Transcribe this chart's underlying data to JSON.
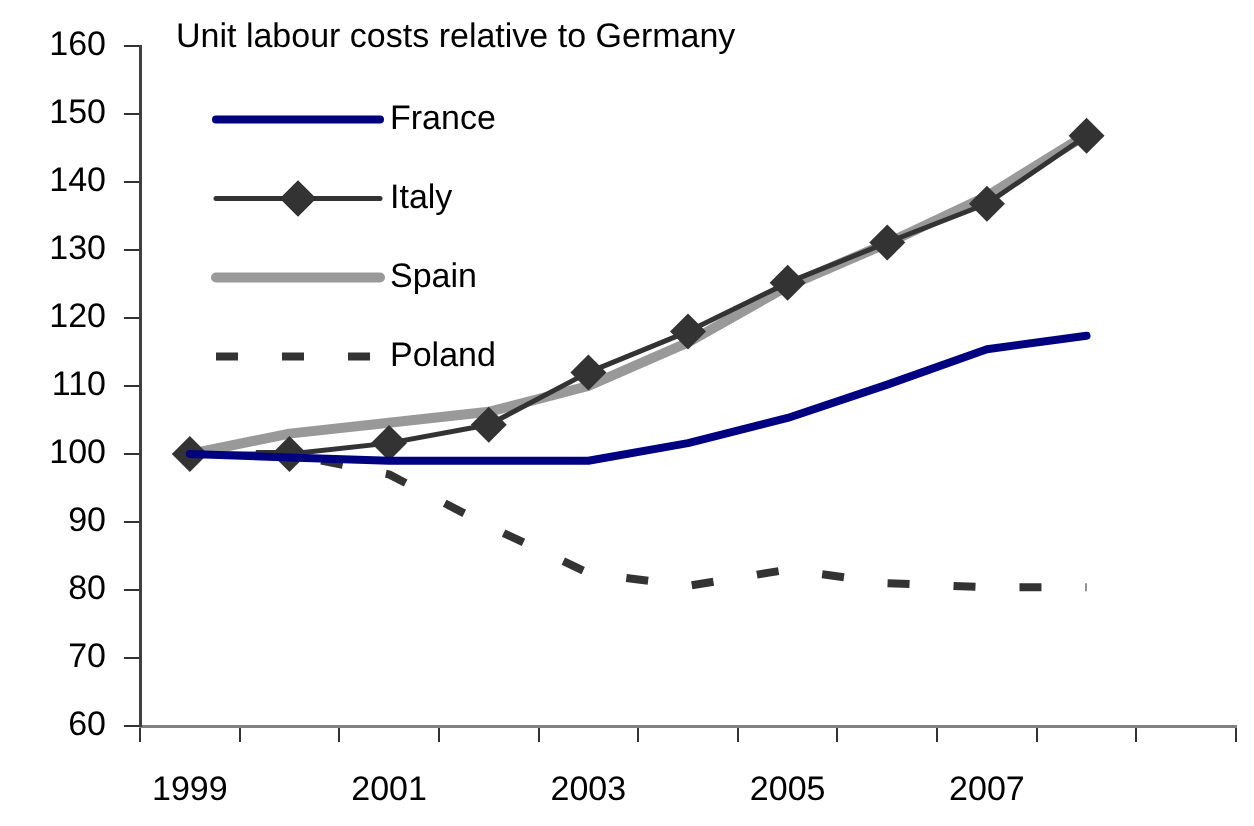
{
  "chart_data": {
    "type": "line",
    "title": "Unit labour costs relative to Germany",
    "categories": [
      "1999",
      null,
      "2001",
      null,
      "2003",
      null,
      "2005",
      null,
      "2007",
      null,
      null
    ],
    "series": [
      {
        "name": "France",
        "color": "#000080",
        "values": [
          100,
          99.5,
          99,
          99,
          99,
          101.6,
          105.3,
          110.2,
          115.4,
          117.4,
          null
        ]
      },
      {
        "name": "Italy",
        "color": "#333333",
        "marker": "diamond",
        "values": [
          100,
          100,
          101.6,
          104.3,
          112,
          118,
          125.2,
          131.1,
          136.8,
          146.8,
          null
        ]
      },
      {
        "name": "Spain",
        "color": "#999999",
        "values": [
          100,
          103,
          104.6,
          106.2,
          110,
          116.4,
          124.7,
          131,
          137.9,
          147,
          null
        ]
      },
      {
        "name": "Poland",
        "color": "#333333",
        "line_style": "dashed",
        "values": [
          100,
          100,
          97,
          89.4,
          82.5,
          80.6,
          83,
          81,
          80.4,
          80.4,
          null
        ]
      }
    ],
    "ylim": [
      60,
      160
    ],
    "yticks": [
      60,
      70,
      80,
      90,
      100,
      110,
      120,
      130,
      140,
      150,
      160
    ],
    "grid": false,
    "legend": "top left",
    "marker": "none",
    "line_style": "solid"
  }
}
